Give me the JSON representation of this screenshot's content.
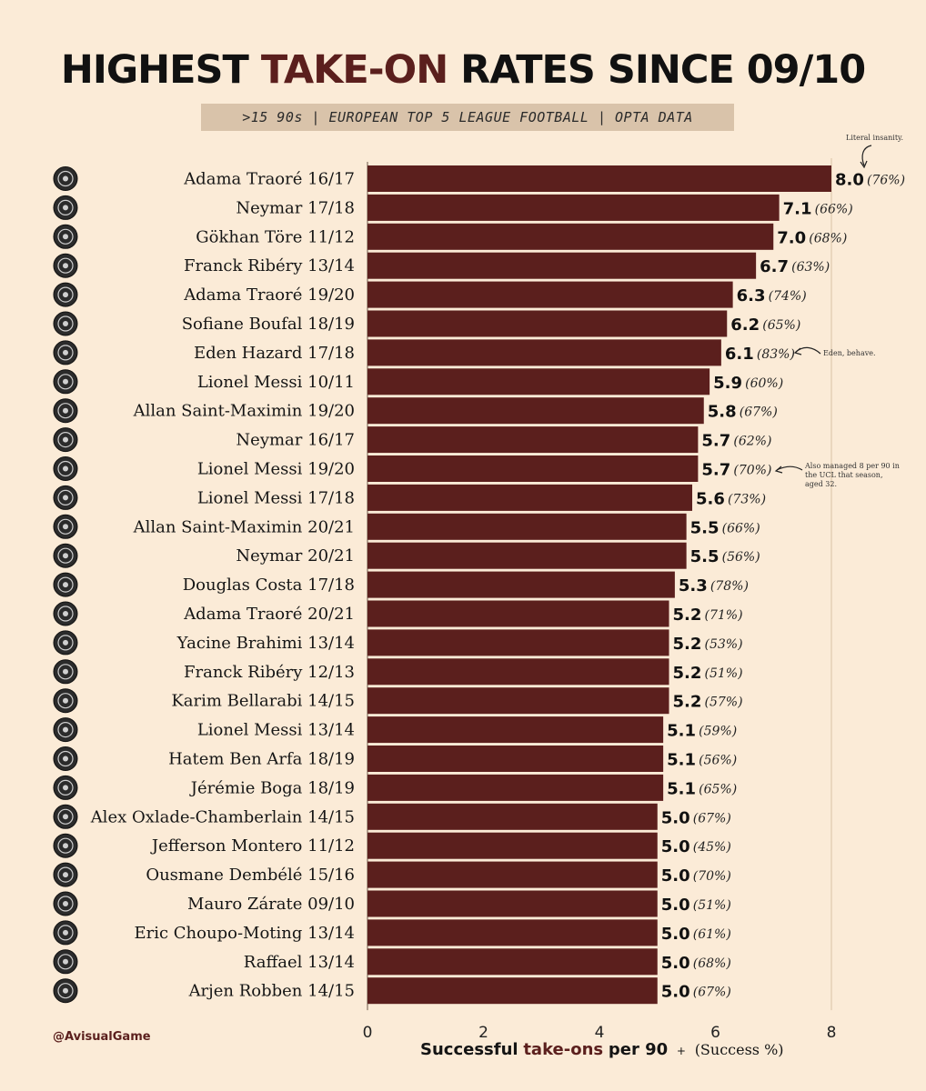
{
  "title": {
    "part1": "HIGHEST",
    "part2": "TAKE-ON",
    "part3": "RATES SINCE 09/10"
  },
  "subtitle": ">15 90s  |  EUROPEAN TOP 5 LEAGUE FOOTBALL  |  OPTA DATA",
  "annotations": {
    "top": "Literal insanity.",
    "hazard": "Eden, behave.",
    "messi": [
      "Also managed 8 per 90 in",
      "the UCL that season,",
      "aged 32."
    ]
  },
  "handle": "@AvisualGame",
  "xlabel": {
    "part1": "Successful",
    "part2": "take-ons",
    "part3": "per 90",
    "plus": "+",
    "part4": "(Success %)"
  },
  "colors": {
    "bar": "#5b1f1d",
    "background": "#fbebd7",
    "subtitle_bg": "#d9c3aa",
    "accent": "#5b1f1d"
  },
  "chart_data": {
    "type": "bar",
    "orientation": "horizontal",
    "xlim": [
      0,
      8
    ],
    "xticks": [
      0,
      2,
      4,
      6,
      8
    ],
    "grid": false,
    "categories": [
      "Adama Traoré 16/17",
      "Neymar 17/18",
      "Gökhan Töre 11/12",
      "Franck Ribéry 13/14",
      "Adama Traoré 19/20",
      "Sofiane Boufal 18/19",
      "Eden Hazard 17/18",
      "Lionel Messi 10/11",
      "Allan Saint-Maximin 19/20",
      "Neymar 16/17",
      "Lionel Messi 19/20",
      "Lionel Messi 17/18",
      "Allan Saint-Maximin 20/21",
      "Neymar 20/21",
      "Douglas Costa 17/18",
      "Adama Traoré 20/21",
      "Yacine Brahimi 13/14",
      "Franck Ribéry 12/13",
      "Karim Bellarabi 14/15",
      "Lionel Messi 13/14",
      "Hatem Ben Arfa 18/19",
      "Jérémie Boga 18/19",
      "Alex Oxlade-Chamberlain 14/15",
      "Jefferson Montero 11/12",
      "Ousmane Dembélé 15/16",
      "Mauro Zárate 09/10",
      "Eric Choupo-Moting 13/14",
      "Raffael 13/14",
      "Arjen Robben 14/15"
    ],
    "values": [
      8.0,
      7.1,
      7.0,
      6.7,
      6.3,
      6.2,
      6.1,
      5.9,
      5.8,
      5.7,
      5.7,
      5.6,
      5.5,
      5.5,
      5.3,
      5.2,
      5.2,
      5.2,
      5.2,
      5.1,
      5.1,
      5.1,
      5.0,
      5.0,
      5.0,
      5.0,
      5.0,
      5.0,
      5.0
    ],
    "value_labels": [
      "8.0",
      "7.1",
      "7.0",
      "6.7",
      "6.3",
      "6.2",
      "6.1",
      "5.9",
      "5.8",
      "5.7",
      "5.7",
      "5.6",
      "5.5",
      "5.5",
      "5.3",
      "5.2",
      "5.2",
      "5.2",
      "5.2",
      "5.1",
      "5.1",
      "5.1",
      "5.0",
      "5.0",
      "5.0",
      "5.0",
      "5.0",
      "5.0",
      "5.0"
    ],
    "success_pct": [
      "(76%)",
      "(66%)",
      "(68%)",
      "(63%)",
      "(74%)",
      "(65%)",
      "(83%)",
      "(60%)",
      "(67%)",
      "(62%)",
      "(70%)",
      "(73%)",
      "(66%)",
      "(56%)",
      "(78%)",
      "(71%)",
      "(53%)",
      "(51%)",
      "(57%)",
      "(59%)",
      "(56%)",
      "(65%)",
      "(67%)",
      "(45%)",
      "(70%)",
      "(51%)",
      "(61%)",
      "(68%)",
      "(67%)"
    ],
    "club_icons": [
      "middlesbrough-crest",
      "psg-crest",
      "hamburg-crest",
      "bayern-crest",
      "wolves-crest",
      "celta-crest",
      "chelsea-crest",
      "barcelona-crest",
      "newcastle-crest",
      "barcelona-crest",
      "barcelona-crest",
      "barcelona-crest",
      "newcastle-crest",
      "psg-crest",
      "juventus-crest",
      "wolves-crest",
      "granada-crest",
      "bayern-crest",
      "leverkusen-crest",
      "barcelona-crest",
      "rennes-crest",
      "sassuolo-crest",
      "arsenal-crest",
      "betis-crest",
      "rennes-crest",
      "lazio-crest",
      "mainz-crest",
      "gladbach-crest",
      "bayern-crest"
    ]
  }
}
